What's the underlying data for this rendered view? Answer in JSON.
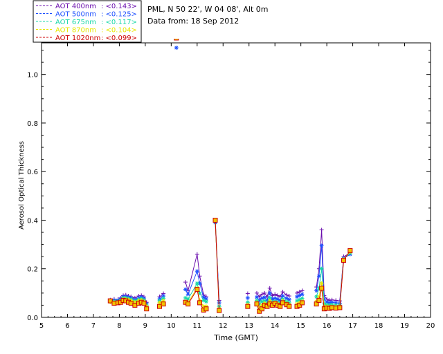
{
  "header": {
    "station": "PML, N 50 22', W 04 08', Alt 0m",
    "date_line": "Data from: 18 Sep 2012"
  },
  "chart_data": {
    "type": "scatter",
    "title": "",
    "xlabel": "Time (GMT)",
    "ylabel": "Aerosol Optical Thickness",
    "xlim": [
      5,
      20
    ],
    "ylim": [
      0,
      1.13
    ],
    "x_ticks": [
      5,
      6,
      7,
      8,
      9,
      10,
      11,
      12,
      13,
      14,
      15,
      16,
      17,
      18,
      19,
      20
    ],
    "x_tick_labels": [
      "5",
      "6",
      "7",
      "8",
      "9",
      "10",
      "11",
      "12",
      "13",
      "14",
      "15",
      "16",
      "17",
      "18",
      "19",
      "20"
    ],
    "y_ticks": [
      0,
      0.2,
      0.4,
      0.6,
      0.8,
      1.0
    ],
    "y_tick_labels": [
      "0.0",
      "0.2",
      "0.4",
      "0.6",
      "0.8",
      "1.0"
    ],
    "grid": false,
    "legend_position": "top-left-outside",
    "series": [
      {
        "name": "AOT  400nm",
        "legend_value": ": <0.143>",
        "color": "#6a0dad",
        "marker": "plus",
        "segments": [
          {
            "x": [
              7.65,
              7.8,
              7.95,
              8.05,
              8.15,
              8.25,
              8.35,
              8.45,
              8.6,
              8.75,
              8.85,
              8.95,
              9.05
            ],
            "y": [
              0.072,
              0.075,
              0.074,
              0.08,
              0.09,
              0.092,
              0.088,
              0.085,
              0.08,
              0.088,
              0.09,
              0.084,
              0.062
            ]
          },
          {
            "x": [
              9.55,
              9.7
            ],
            "y": [
              0.085,
              0.098
            ]
          },
          {
            "x": [
              10.55,
              10.65,
              11.0,
              11.1,
              11.25,
              11.35
            ],
            "y": [
              0.145,
              0.11,
              0.26,
              0.17,
              0.092,
              0.085
            ]
          },
          {
            "x": [
              11.7,
              11.85
            ],
            "y": [
              0.4,
              0.07
            ]
          },
          {
            "x": [
              12.95
            ],
            "y": [
              0.098
            ]
          },
          {
            "x": [
              13.3,
              13.4,
              13.5,
              13.6,
              13.7,
              13.8,
              13.9,
              14.0,
              14.1,
              14.2,
              14.3,
              14.45,
              14.55
            ],
            "y": [
              0.1,
              0.085,
              0.095,
              0.1,
              0.085,
              0.12,
              0.09,
              0.095,
              0.09,
              0.085,
              0.105,
              0.092,
              0.088
            ]
          },
          {
            "x": [
              14.85,
              14.95,
              15.05
            ],
            "y": [
              0.1,
              0.105,
              0.11
            ]
          },
          {
            "x": [
              15.6,
              15.7,
              15.8,
              15.9,
              16.0,
              16.1,
              16.2,
              16.35,
              16.5,
              16.65,
              16.9
            ],
            "y": [
              0.125,
              0.2,
              0.36,
              0.09,
              0.075,
              0.07,
              0.072,
              0.07,
              0.068,
              0.25,
              0.265
            ]
          }
        ]
      },
      {
        "name": "AOT  500nm",
        "legend_value": ": <0.125>",
        "color": "#1d4fff",
        "marker": "asterisk",
        "segments": [
          {
            "x": [
              7.65,
              7.8,
              7.95,
              8.05,
              8.15,
              8.25,
              8.35,
              8.45,
              8.6,
              8.75,
              8.85,
              8.95,
              9.05
            ],
            "y": [
              0.068,
              0.07,
              0.07,
              0.075,
              0.085,
              0.085,
              0.082,
              0.08,
              0.073,
              0.08,
              0.083,
              0.077,
              0.055
            ]
          },
          {
            "x": [
              9.55,
              9.7
            ],
            "y": [
              0.076,
              0.088
            ]
          },
          {
            "x": [
              10.2
            ],
            "y": [
              1.11
            ]
          },
          {
            "x": [
              10.55,
              10.65,
              11.0,
              11.1,
              11.25,
              11.35
            ],
            "y": [
              0.115,
              0.095,
              0.19,
              0.14,
              0.082,
              0.076
            ]
          },
          {
            "x": [
              11.7,
              11.85
            ],
            "y": [
              0.39,
              0.06
            ]
          },
          {
            "x": [
              12.95
            ],
            "y": [
              0.08
            ]
          },
          {
            "x": [
              13.3,
              13.4,
              13.5,
              13.6,
              13.7,
              13.8,
              13.9,
              14.0,
              14.1,
              14.2,
              14.3,
              14.45,
              14.55
            ],
            "y": [
              0.083,
              0.07,
              0.078,
              0.082,
              0.07,
              0.1,
              0.075,
              0.078,
              0.075,
              0.07,
              0.088,
              0.078,
              0.073
            ]
          },
          {
            "x": [
              14.85,
              14.95,
              15.05
            ],
            "y": [
              0.085,
              0.09,
              0.095
            ]
          },
          {
            "x": [
              15.6,
              15.7,
              15.8,
              15.9,
              16.0,
              16.1,
              16.2,
              16.35,
              16.5,
              16.65,
              16.9
            ],
            "y": [
              0.11,
              0.17,
              0.295,
              0.075,
              0.063,
              0.06,
              0.062,
              0.06,
              0.058,
              0.242,
              0.26
            ]
          }
        ]
      },
      {
        "name": "AOT  675nm",
        "legend_value": ": <0.117>",
        "color": "#19d8a8",
        "marker": "asterisk",
        "segments": [
          {
            "x": [
              7.65,
              7.8,
              7.95,
              8.05,
              8.15,
              8.25,
              8.35,
              8.45,
              8.6,
              8.75,
              8.85,
              8.95,
              9.05
            ],
            "y": [
              0.065,
              0.066,
              0.066,
              0.07,
              0.08,
              0.08,
              0.077,
              0.075,
              0.068,
              0.074,
              0.077,
              0.071,
              0.05
            ]
          },
          {
            "x": [
              9.55,
              9.7
            ],
            "y": [
              0.068,
              0.078
            ]
          },
          {
            "x": [
              10.55,
              10.65,
              11.0,
              11.1,
              11.25,
              11.35
            ],
            "y": [
              0.08,
              0.075,
              0.14,
              0.1,
              0.07,
              0.065
            ]
          },
          {
            "x": [
              11.7,
              11.85
            ],
            "y": [
              0.395,
              0.045
            ]
          },
          {
            "x": [
              12.95
            ],
            "y": [
              0.062
            ]
          },
          {
            "x": [
              13.3,
              13.4,
              13.5,
              13.6,
              13.7,
              13.8,
              13.9,
              14.0,
              14.1,
              14.2,
              14.3,
              14.45,
              14.55
            ],
            "y": [
              0.07,
              0.055,
              0.065,
              0.068,
              0.058,
              0.08,
              0.063,
              0.066,
              0.062,
              0.058,
              0.075,
              0.065,
              0.06
            ]
          },
          {
            "x": [
              14.85,
              14.95,
              15.05
            ],
            "y": [
              0.068,
              0.072,
              0.078
            ]
          },
          {
            "x": [
              15.6,
              15.7,
              15.8,
              15.9,
              16.0,
              16.1,
              16.2,
              16.35,
              16.5,
              16.65,
              16.9
            ],
            "y": [
              0.085,
              0.12,
              0.2,
              0.055,
              0.052,
              0.05,
              0.052,
              0.05,
              0.05,
              0.24,
              0.265
            ]
          }
        ]
      },
      {
        "name": "AOT  870nm",
        "legend_value": ": <0.104>",
        "color": "#e8e800",
        "marker": "asterisk",
        "segments": [
          {
            "x": [
              7.65,
              7.8,
              7.95,
              8.05,
              8.15,
              8.25,
              8.35,
              8.45,
              8.6,
              8.75,
              8.85,
              8.95,
              9.05
            ],
            "y": [
              0.063,
              0.062,
              0.062,
              0.066,
              0.075,
              0.075,
              0.072,
              0.07,
              0.063,
              0.069,
              0.071,
              0.066,
              0.045
            ]
          },
          {
            "x": [
              9.55,
              9.7
            ],
            "y": [
              0.06,
              0.068
            ]
          },
          {
            "x": [
              10.55,
              10.65,
              11.0,
              11.1,
              11.25,
              11.35
            ],
            "y": [
              0.065,
              0.062,
              0.12,
              0.07,
              0.045,
              0.045
            ]
          },
          {
            "x": [
              11.7,
              11.85
            ],
            "y": [
              0.398,
              0.035
            ]
          },
          {
            "x": [
              12.95
            ],
            "y": [
              0.052
            ]
          },
          {
            "x": [
              13.3,
              13.4,
              13.5,
              13.6,
              13.7,
              13.8,
              13.9,
              14.0,
              14.1,
              14.2,
              14.3,
              14.45,
              14.55
            ],
            "y": [
              0.062,
              0.04,
              0.05,
              0.058,
              0.05,
              0.068,
              0.055,
              0.06,
              0.056,
              0.05,
              0.068,
              0.058,
              0.052
            ]
          },
          {
            "x": [
              14.85,
              14.95,
              15.05
            ],
            "y": [
              0.055,
              0.06,
              0.066
            ]
          },
          {
            "x": [
              15.6,
              15.7,
              15.8,
              15.9,
              16.0,
              16.1,
              16.2,
              16.35,
              16.5,
              16.65,
              16.9
            ],
            "y": [
              0.065,
              0.085,
              0.14,
              0.045,
              0.045,
              0.043,
              0.045,
              0.044,
              0.045,
              0.238,
              0.27
            ]
          }
        ]
      },
      {
        "name": "AOT 1020nm",
        "legend_value": ": <0.099>",
        "color": "#cc0000",
        "marker": "square",
        "fill": "#f2c300",
        "segments": [
          {
            "x": [
              7.65,
              7.8,
              7.95,
              8.05,
              8.15,
              8.25,
              8.35,
              8.45,
              8.6,
              8.75,
              8.85,
              8.95,
              9.05
            ],
            "y": [
              0.068,
              0.058,
              0.06,
              0.062,
              0.07,
              0.068,
              0.062,
              0.058,
              0.05,
              0.058,
              0.062,
              0.058,
              0.035
            ]
          },
          {
            "x": [
              9.55,
              9.7
            ],
            "y": [
              0.045,
              0.055
            ]
          },
          {
            "x": [
              10.2
            ],
            "y": [
              1.15
            ]
          },
          {
            "x": [
              10.55,
              10.65,
              11.0,
              11.1,
              11.25,
              11.35
            ],
            "y": [
              0.062,
              0.055,
              0.115,
              0.06,
              0.03,
              0.035
            ]
          },
          {
            "x": [
              11.7,
              11.85
            ],
            "y": [
              0.4,
              0.028
            ]
          },
          {
            "x": [
              12.95
            ],
            "y": [
              0.045
            ]
          },
          {
            "x": [
              13.3,
              13.4,
              13.5,
              13.6,
              13.7,
              13.8,
              13.9,
              14.0,
              14.1,
              14.2,
              14.3,
              14.45,
              14.55
            ],
            "y": [
              0.055,
              0.025,
              0.035,
              0.05,
              0.045,
              0.055,
              0.05,
              0.058,
              0.05,
              0.045,
              0.06,
              0.052,
              0.045
            ]
          },
          {
            "x": [
              14.85,
              14.95,
              15.05
            ],
            "y": [
              0.045,
              0.05,
              0.06
            ]
          },
          {
            "x": [
              15.6,
              15.7,
              15.8,
              15.9,
              16.0,
              16.1,
              16.2,
              16.35,
              16.5,
              16.65,
              16.9
            ],
            "y": [
              0.055,
              0.07,
              0.12,
              0.035,
              0.038,
              0.037,
              0.04,
              0.038,
              0.04,
              0.235,
              0.275
            ]
          }
        ]
      }
    ]
  }
}
